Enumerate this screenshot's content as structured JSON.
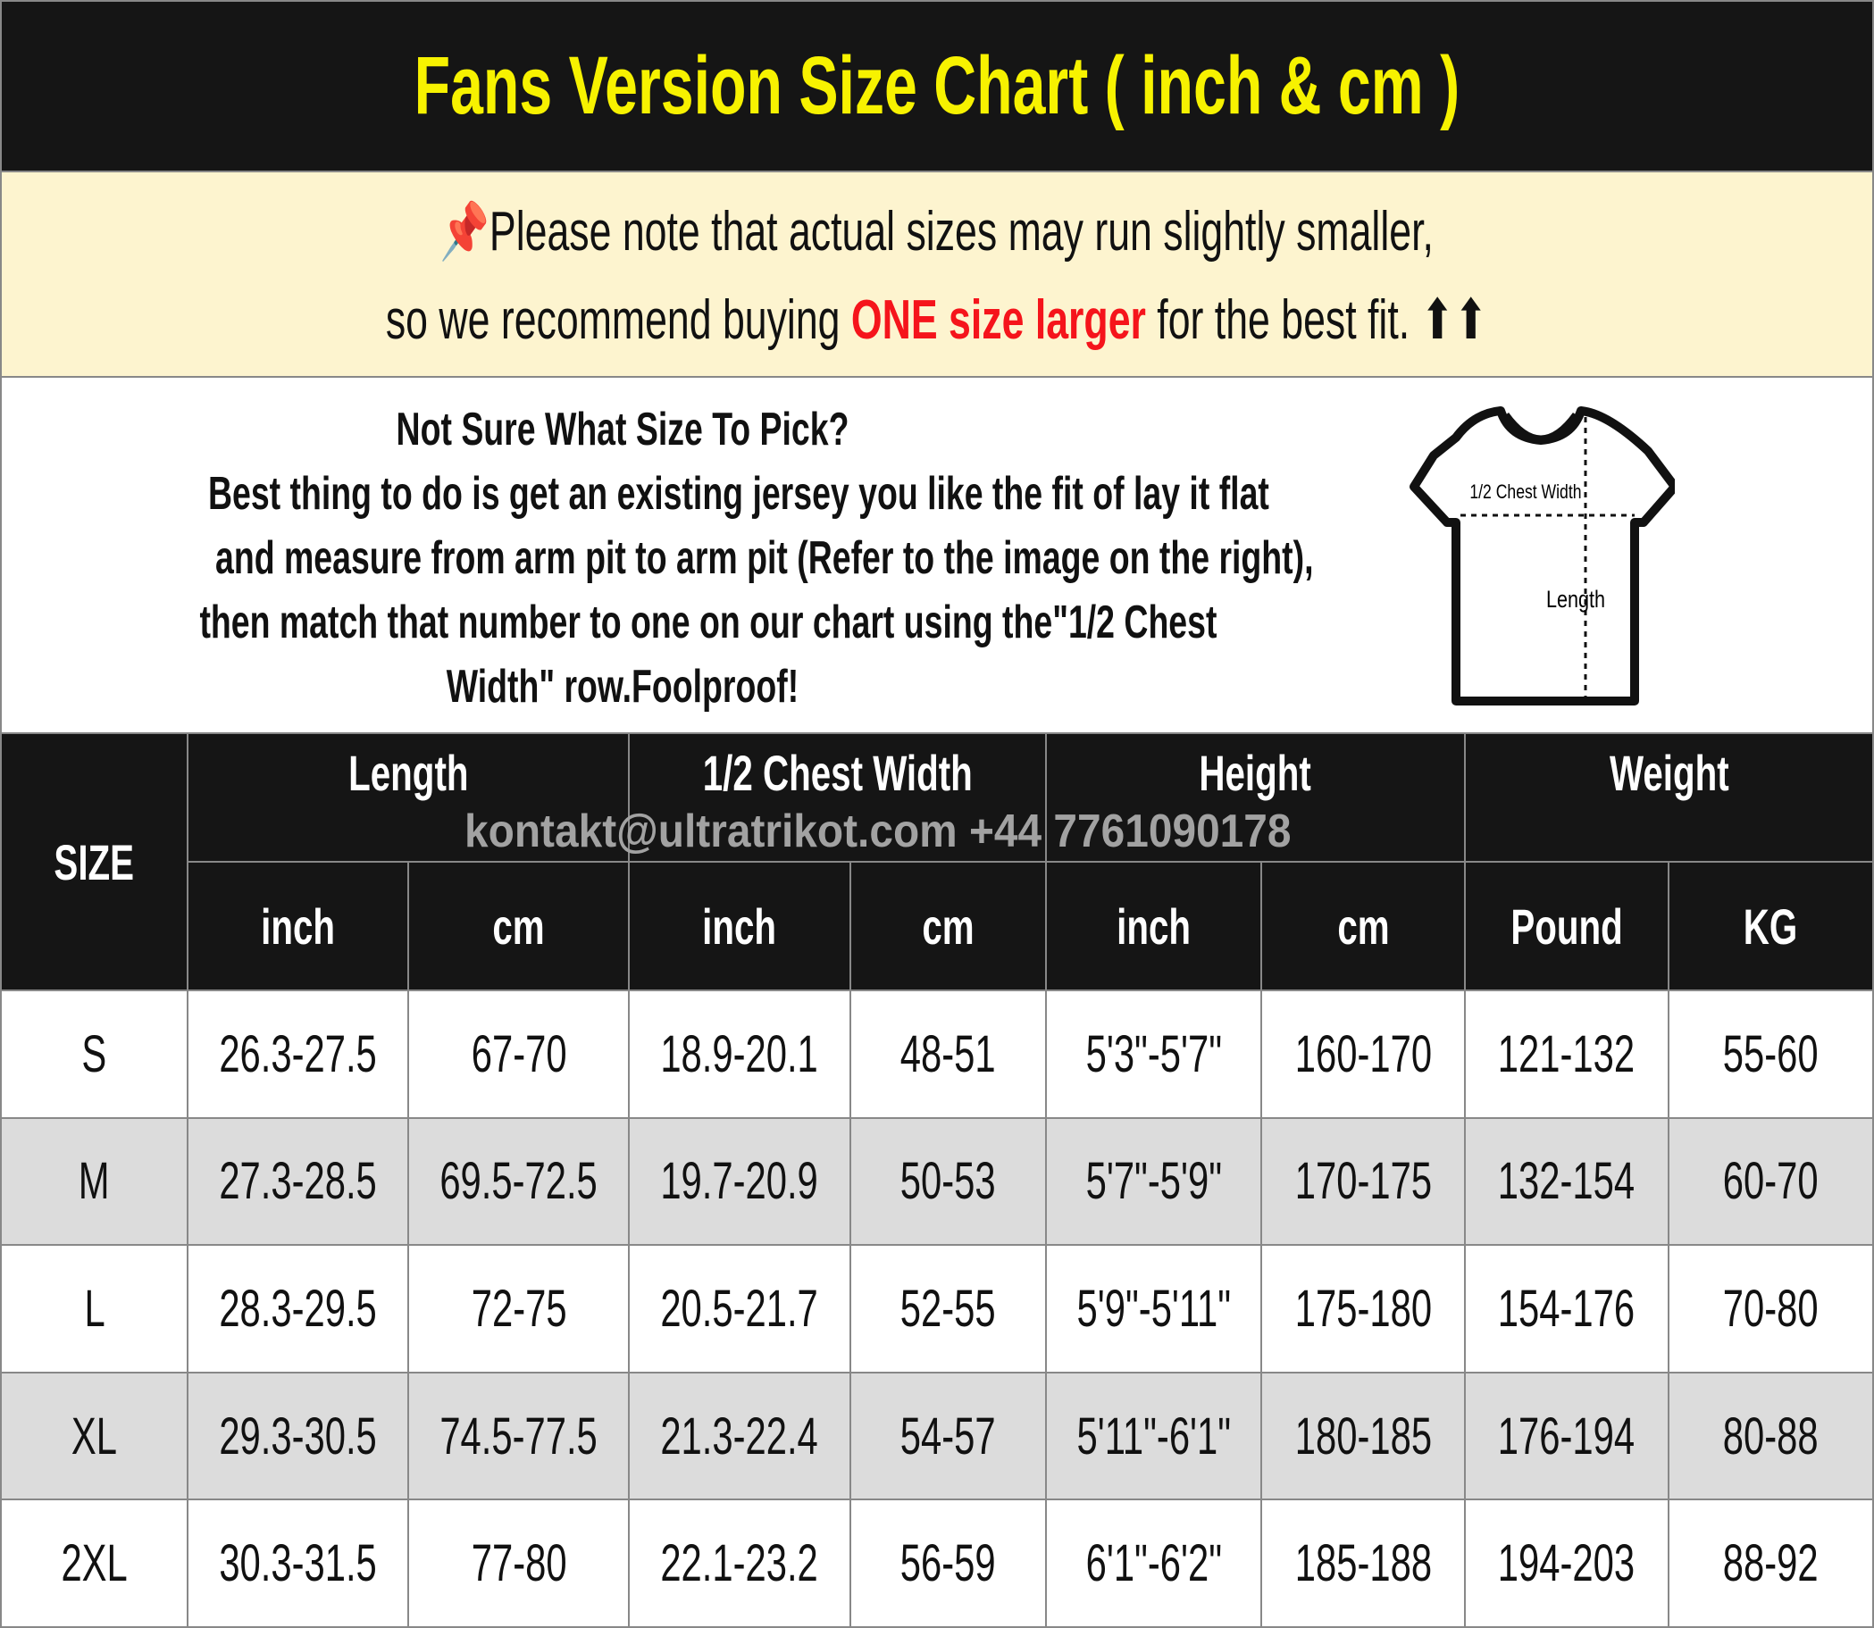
{
  "title": "Fans Version Size Chart ( inch & cm )",
  "notice": {
    "icon": "pushpin-icon",
    "line1": "Please note that actual sizes may run slightly smaller,",
    "line2_pre": "so we recommend buying ",
    "line2_highlight": "ONE size larger",
    "line2_post": " for the best fit. ⬆⬆",
    "highlight_color": "#f5141b"
  },
  "info": {
    "heading": "Not Sure What Size To Pick?",
    "body": [
      "Best thing to do is get an existing jersey you like the fit of lay it flat",
      "and measure from arm pit to arm pit (Refer to the image on the right),",
      "then match that number to one on our chart using the\"1/2 Chest",
      "Width\" row.Foolproof!"
    ]
  },
  "diagram": {
    "chest_label": "1/2 Chest Width",
    "length_label": "Length"
  },
  "watermark": "kontakt@ultratrikot.com   +44 7761090178",
  "table": {
    "size_header": "SIZE",
    "groups": [
      "Length",
      "1/2 Chest Width",
      "Height",
      "Weight"
    ],
    "units": [
      "inch",
      "cm",
      "inch",
      "cm",
      "inch",
      "cm",
      "Pound",
      "KG"
    ],
    "rows": [
      [
        "S",
        "26.3-27.5",
        "67-70",
        "18.9-20.1",
        "48-51",
        "5'3\"-5'7\"",
        "160-170",
        "121-132",
        "55-60"
      ],
      [
        "M",
        "27.3-28.5",
        "69.5-72.5",
        "19.7-20.9",
        "50-53",
        "5'7\"-5'9\"",
        "170-175",
        "132-154",
        "60-70"
      ],
      [
        "L",
        "28.3-29.5",
        "72-75",
        "20.5-21.7",
        "52-55",
        "5'9\"-5'11\"",
        "175-180",
        "154-176",
        "70-80"
      ],
      [
        "XL",
        "29.3-30.5",
        "74.5-77.5",
        "21.3-22.4",
        "54-57",
        "5'11\"-6'1\"",
        "180-185",
        "176-194",
        "80-88"
      ],
      [
        "2XL",
        "30.3-31.5",
        "77-80",
        "22.1-23.2",
        "56-59",
        "6'1\"-6'2\"",
        "185-188",
        "194-203",
        "88-92"
      ]
    ]
  }
}
